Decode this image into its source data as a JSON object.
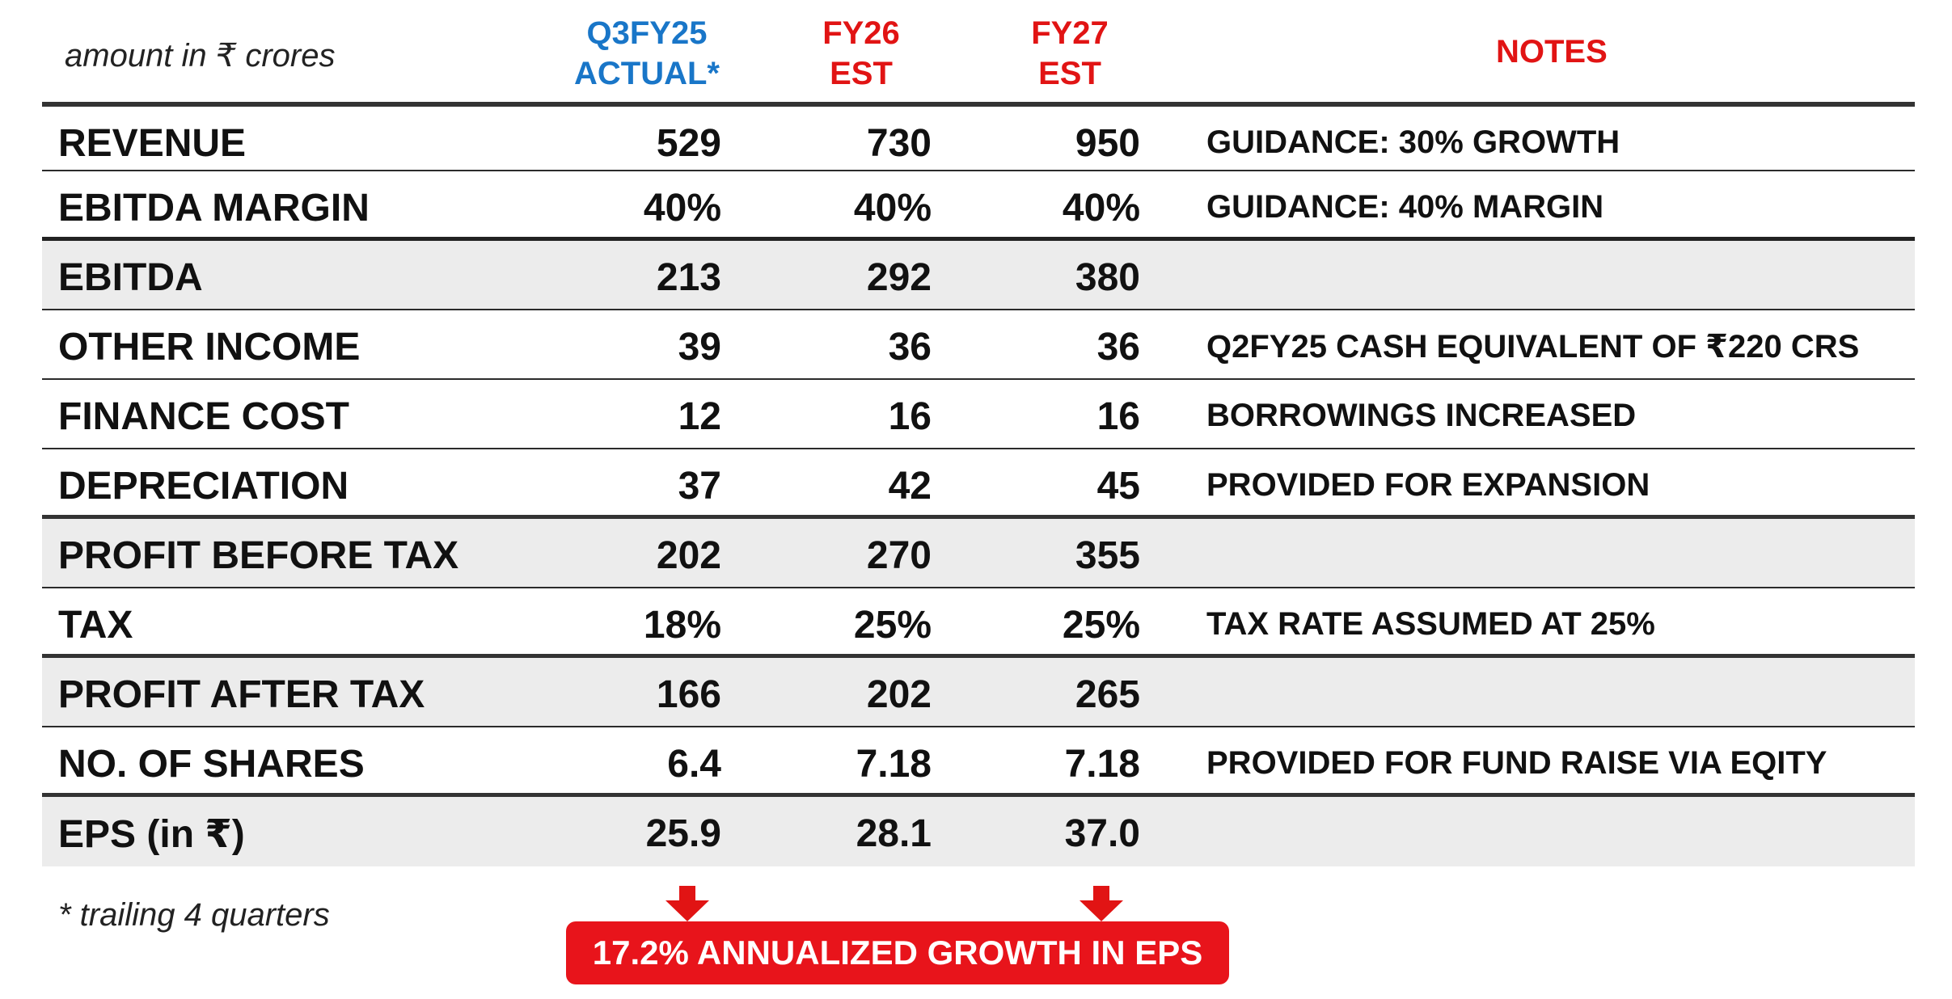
{
  "header": {
    "unit_label": "amount in ₹ crores",
    "col_actual": [
      "Q3FY25",
      "ACTUAL*"
    ],
    "col_fy26": [
      "FY26",
      "EST"
    ],
    "col_fy27": [
      "FY27",
      "EST"
    ],
    "col_notes": "NOTES"
  },
  "colors": {
    "actual_header": "#1976c8",
    "estimate_header": "#e11414",
    "callout_bg": "#e8141b",
    "shaded_row": "#ececec"
  },
  "rows": [
    {
      "label": "REVENUE",
      "q3fy25": "529",
      "fy26": "730",
      "fy27": "950",
      "note": "GUIDANCE: 30% GROWTH"
    },
    {
      "label": "EBITDA MARGIN",
      "q3fy25": "40%",
      "fy26": "40%",
      "fy27": "40%",
      "note": "GUIDANCE: 40% MARGIN"
    },
    {
      "label": "EBITDA",
      "q3fy25": "213",
      "fy26": "292",
      "fy27": "380",
      "note": ""
    },
    {
      "label": "OTHER INCOME",
      "q3fy25": "39",
      "fy26": "36",
      "fy27": "36",
      "note": "Q2FY25 CASH EQUIVALENT OF ₹220 CRS"
    },
    {
      "label": "FINANCE COST",
      "q3fy25": "12",
      "fy26": "16",
      "fy27": "16",
      "note": "BORROWINGS INCREASED"
    },
    {
      "label": "DEPRECIATION",
      "q3fy25": "37",
      "fy26": "42",
      "fy27": "45",
      "note": "PROVIDED FOR EXPANSION"
    },
    {
      "label": "PROFIT BEFORE TAX",
      "q3fy25": "202",
      "fy26": "270",
      "fy27": "355",
      "note": ""
    },
    {
      "label": "TAX",
      "q3fy25": "18%",
      "fy26": "25%",
      "fy27": "25%",
      "note": "TAX RATE ASSUMED AT 25%"
    },
    {
      "label": "PROFIT AFTER TAX",
      "q3fy25": "166",
      "fy26": "202",
      "fy27": "265",
      "note": ""
    },
    {
      "label": "NO. OF SHARES",
      "q3fy25": "6.4",
      "fy26": "7.18",
      "fy27": "7.18",
      "note": "PROVIDED FOR FUND RAISE VIA EQITY"
    },
    {
      "label": "EPS (in ₹)",
      "q3fy25": "25.9",
      "fy26": "28.1",
      "fy27": "37.0",
      "note": ""
    }
  ],
  "footnote": "* trailing 4 quarters",
  "callout": "17.2% ANNUALIZED GROWTH IN EPS"
}
